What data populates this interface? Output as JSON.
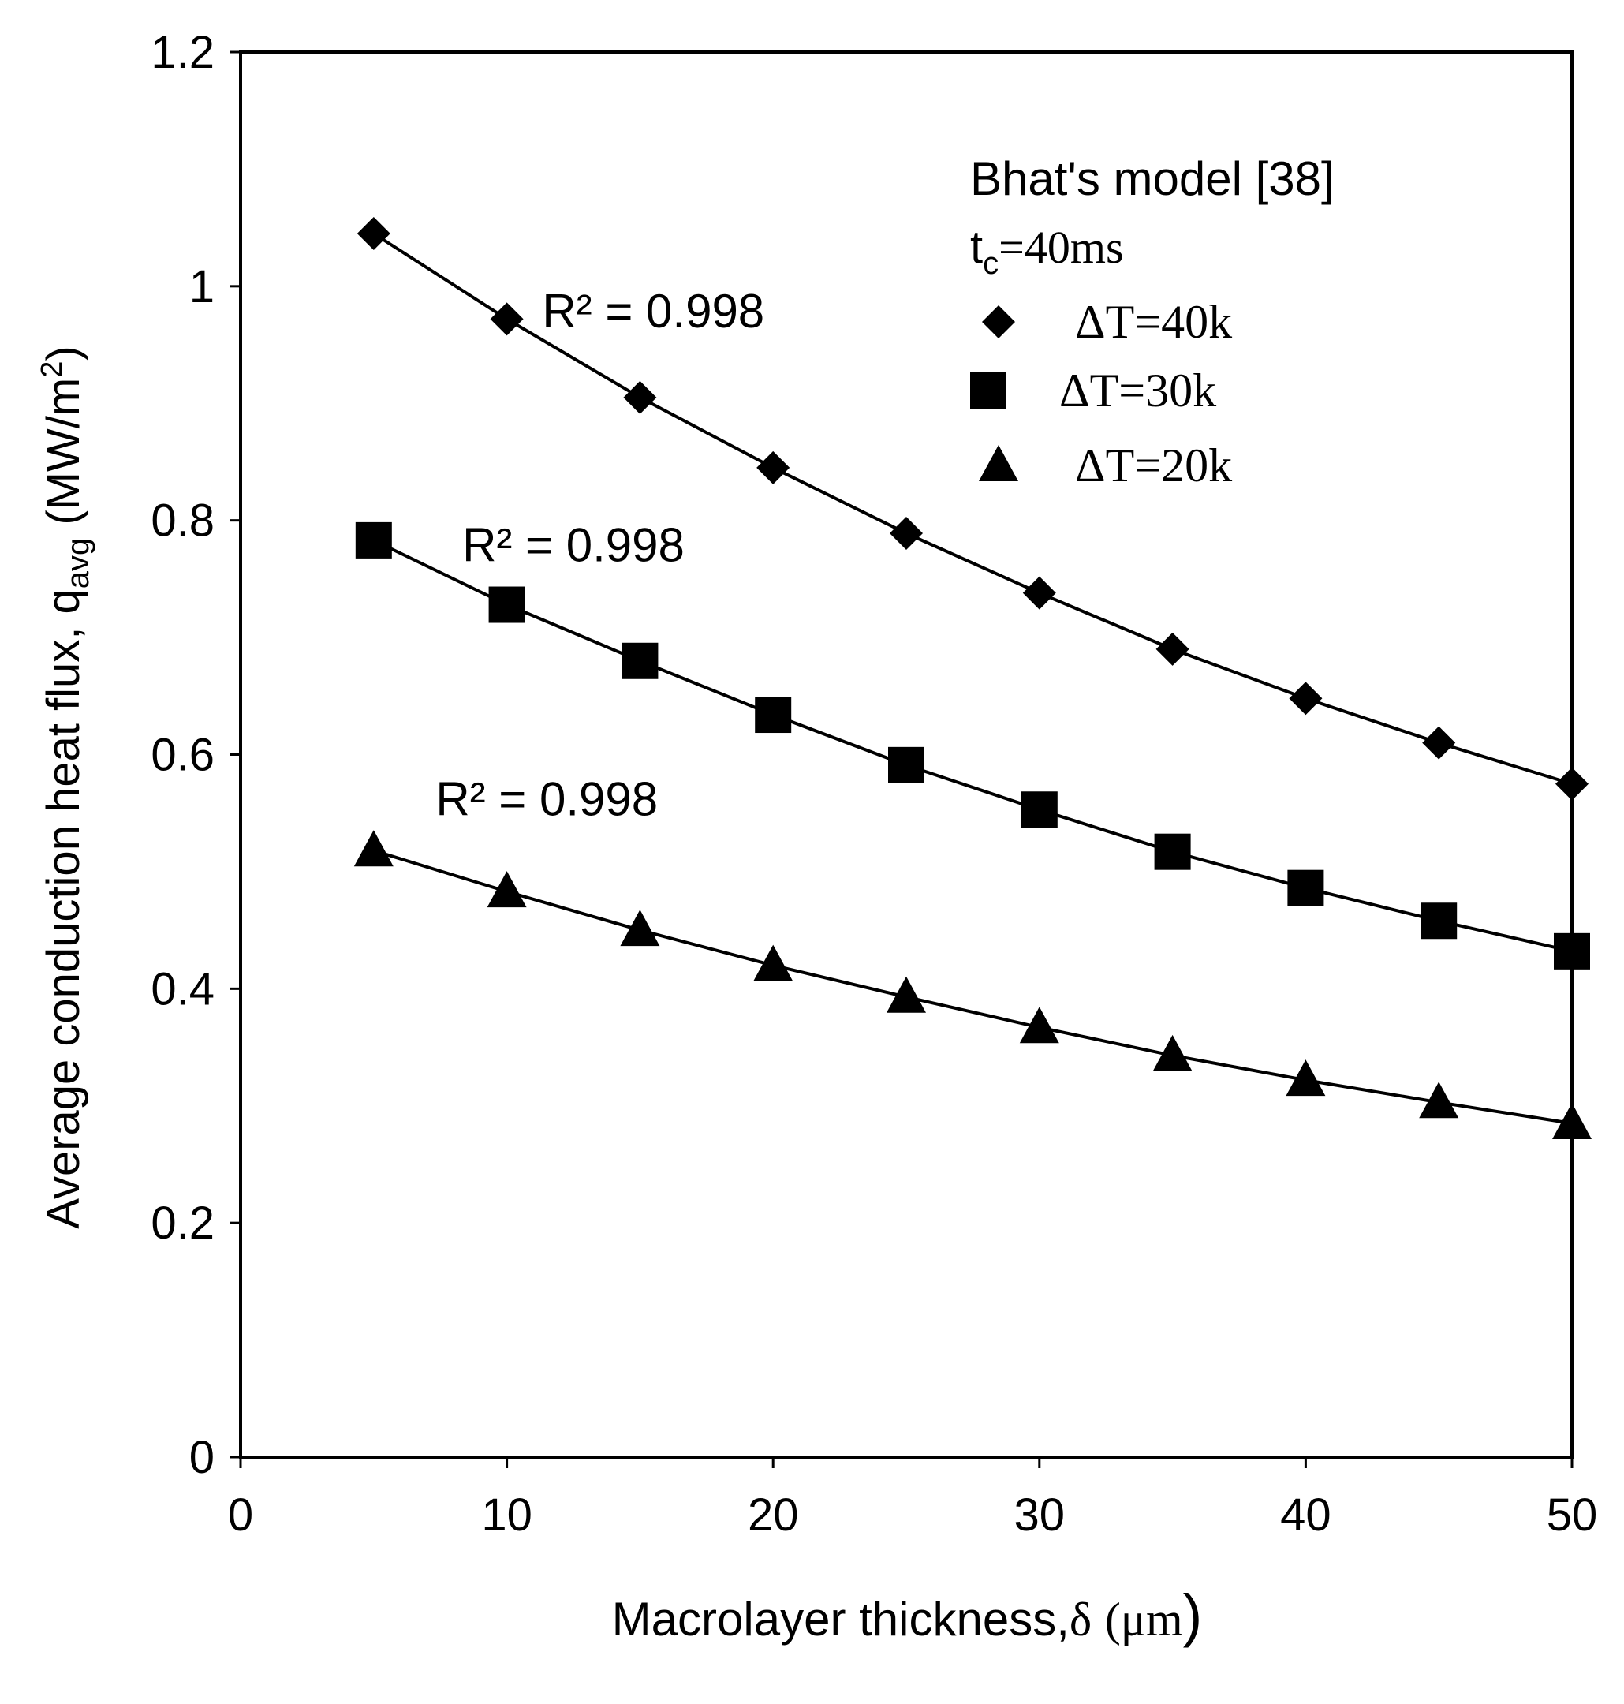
{
  "chart_data": {
    "type": "scatter",
    "title": "",
    "xlabel": {
      "text": "Macrolayer thickness,",
      "symbol": "δ",
      "unit": "(μm",
      "close": ")"
    },
    "ylabel": {
      "text": "Average conduction heat  flux, q",
      "subscript": "avg",
      "unit": " (MW/m",
      "superscript": "2",
      "close": ")"
    },
    "xlim": [
      0,
      50
    ],
    "ylim": [
      0,
      1.2
    ],
    "x_ticks": [
      0,
      10,
      20,
      30,
      40,
      50
    ],
    "x_tick_labels": [
      "0",
      "10",
      "20",
      "30",
      "40",
      "50"
    ],
    "y_ticks": [
      0,
      0.2,
      0.4,
      0.6,
      0.8,
      1.0,
      1.2
    ],
    "y_tick_labels": [
      "0",
      "0.2",
      "0.4",
      "0.6",
      "0.8",
      "1",
      "1.2"
    ],
    "grid": false,
    "legend": {
      "placement": "top-right",
      "title": "Bhat's model  [38]",
      "subtitle": {
        "prefix": "t",
        "subscript": "c",
        "suffix": "=40ms"
      }
    },
    "x": [
      5,
      10,
      15,
      20,
      25,
      30,
      35,
      40,
      45,
      50
    ],
    "series": [
      {
        "name": "ΔT=40k",
        "marker": "diamond",
        "values": [
          1.045,
          0.972,
          0.905,
          0.845,
          0.789,
          0.738,
          0.69,
          0.648,
          0.61,
          0.575
        ],
        "trendline": true,
        "annotation": "R² = 0.998",
        "annotation_at": [
          15.5,
          0.965
        ]
      },
      {
        "name": "ΔT=30k",
        "marker": "square",
        "values": [
          0.783,
          0.728,
          0.68,
          0.634,
          0.591,
          0.553,
          0.517,
          0.486,
          0.458,
          0.432
        ],
        "trendline": true,
        "annotation": "R² = 0.998",
        "annotation_at": [
          12.5,
          0.765
        ]
      },
      {
        "name": "ΔT=20k",
        "marker": "triangle",
        "values": [
          0.518,
          0.483,
          0.45,
          0.42,
          0.393,
          0.367,
          0.343,
          0.322,
          0.303,
          0.285
        ],
        "trendline": true,
        "annotation": "R² = 0.998",
        "annotation_at": [
          11.5,
          0.548
        ]
      }
    ]
  },
  "colors": {
    "background": "#ffffff",
    "ink": "#000000"
  }
}
